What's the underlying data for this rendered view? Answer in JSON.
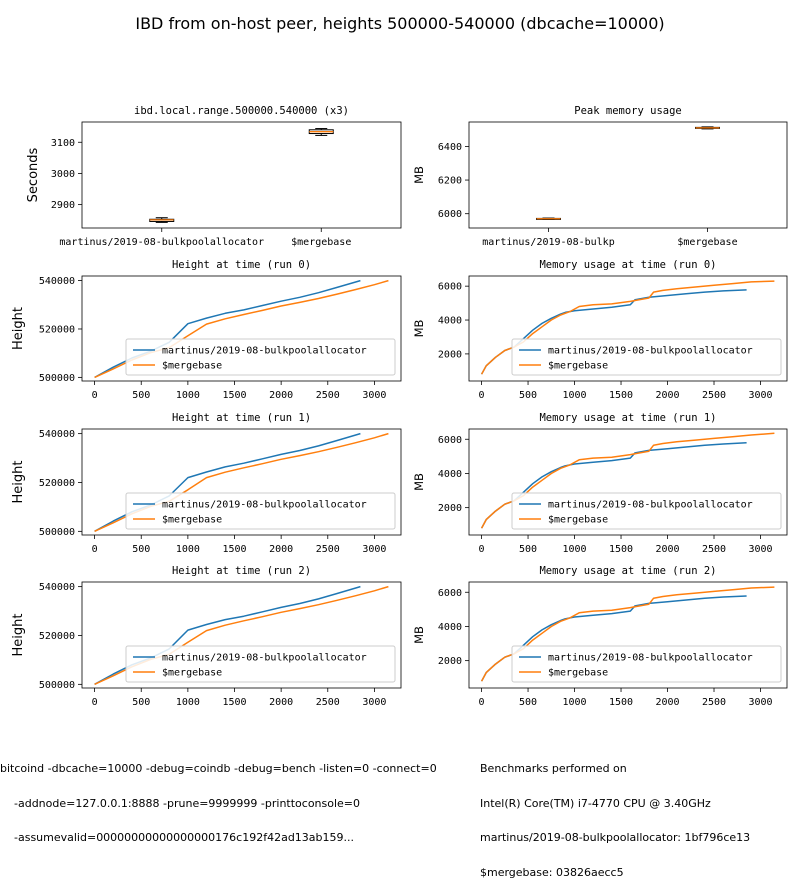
{
  "figure": {
    "title": "IBD from on-host peer, heights 500000-540000 (dbcache=10000)",
    "footer_left": [
      "bitcoind -dbcache=10000 -debug=coindb -debug=bench -listen=0 -connect=0",
      "-addnode=127.0.0.1:8888 -prune=9999999 -printtoconsole=0",
      "-assumevalid=00000000000000000176c192f42ad13ab159..."
    ],
    "footer_right": [
      "Benchmarks performed on",
      "Intel(R) Core(TM) i7-4770 CPU @ 3.40GHz",
      "martinus/2019-08-bulkpoolallocator: 1bf796ce13",
      "$mergebase: 03826aecc5"
    ]
  },
  "colors": {
    "series_a": "#1f77b4",
    "series_b": "#ff7f0e",
    "box_median": "#ff7f0e"
  },
  "chart_data": [
    {
      "type": "box",
      "title": "ibd.local.range.500000.540000 (x3)",
      "ylabel": "Seconds",
      "categories": [
        "martinus/2019-08-bulkpoolallocator",
        "$mergebase"
      ],
      "ylim": [
        2825,
        3165
      ],
      "yticks": [
        2900,
        3000,
        3100
      ],
      "boxes": [
        {
          "min": 2843,
          "q1": 2846,
          "median": 2851,
          "q3": 2853,
          "max": 2858
        },
        {
          "min": 3122,
          "q1": 3128,
          "median": 3134,
          "q3": 3140,
          "max": 3144
        }
      ]
    },
    {
      "type": "box",
      "title": "Peak memory usage",
      "ylabel": "MB",
      "categories": [
        "martinus/2019-08-bulkp",
        "$mergebase"
      ],
      "ylim": [
        5915,
        6545
      ],
      "yticks": [
        6000,
        6200,
        6400
      ],
      "boxes": [
        {
          "min": 5966,
          "q1": 5968,
          "median": 5970,
          "q3": 5972,
          "max": 5974
        },
        {
          "min": 6504,
          "q1": 6507,
          "median": 6510,
          "q3": 6513,
          "max": 6516
        }
      ]
    },
    {
      "type": "line",
      "kind": "height",
      "title": "Height at time (run 0)",
      "ylabel": "Height",
      "xlim": [
        -135,
        3285
      ],
      "ylim": [
        498500,
        541900
      ],
      "xticks": [
        0,
        500,
        1000,
        1500,
        2000,
        2500,
        3000
      ],
      "yticks": [
        500000,
        520000,
        540000
      ],
      "series": [
        {
          "name": "martinus/2019-08-bulkpoolallocator",
          "x": [
            0,
            200,
            400,
            600,
            800,
            1000,
            1200,
            1400,
            1600,
            1800,
            2000,
            2200,
            2400,
            2600,
            2850
          ],
          "y": [
            500000,
            504200,
            508000,
            510800,
            514500,
            522200,
            524500,
            526500,
            527900,
            529700,
            531500,
            533100,
            535000,
            537200,
            540000
          ]
        },
        {
          "name": "$mergebase",
          "x": [
            0,
            200,
            400,
            600,
            800,
            1000,
            1200,
            1400,
            1600,
            1800,
            2000,
            2200,
            2400,
            2600,
            2800,
            3000,
            3150
          ],
          "y": [
            500000,
            503500,
            507200,
            510200,
            512300,
            517200,
            522000,
            524200,
            526000,
            527700,
            529500,
            531000,
            532600,
            534400,
            536300,
            538300,
            540000
          ]
        }
      ]
    },
    {
      "type": "line",
      "kind": "memory",
      "title": "Memory usage at time (run 0)",
      "ylabel": "MB",
      "xlim": [
        -135,
        3285
      ],
      "ylim": [
        400,
        6600
      ],
      "xticks": [
        0,
        500,
        1000,
        1500,
        2000,
        2500,
        3000
      ],
      "yticks": [
        2000,
        4000,
        6000
      ],
      "series": [
        {
          "name": "martinus/2019-08-bulkpoolallocator",
          "x": [
            0,
            50,
            150,
            250,
            350,
            450,
            550,
            650,
            750,
            850,
            900,
            1000,
            1200,
            1400,
            1600,
            1650,
            1800,
            2000,
            2200,
            2400,
            2600,
            2850
          ],
          "y": [
            800,
            1300,
            1800,
            2200,
            2400,
            2900,
            3400,
            3800,
            4100,
            4350,
            4450,
            4550,
            4650,
            4750,
            4900,
            5200,
            5350,
            5450,
            5550,
            5650,
            5720,
            5780
          ]
        },
        {
          "name": "$mergebase",
          "x": [
            0,
            50,
            150,
            250,
            350,
            450,
            550,
            650,
            750,
            850,
            950,
            1050,
            1200,
            1400,
            1600,
            1800,
            1850,
            1950,
            2100,
            2300,
            2500,
            2700,
            2900,
            3150
          ],
          "y": [
            800,
            1300,
            1800,
            2200,
            2400,
            2700,
            3200,
            3600,
            4000,
            4300,
            4500,
            4800,
            4900,
            4950,
            5100,
            5300,
            5650,
            5750,
            5850,
            5950,
            6050,
            6150,
            6250,
            6300
          ]
        }
      ]
    },
    {
      "type": "line",
      "kind": "height",
      "title": "Height at time (run 1)",
      "ylabel": "Height",
      "xlim": [
        -135,
        3285
      ],
      "ylim": [
        498500,
        541900
      ],
      "xticks": [
        0,
        500,
        1000,
        1500,
        2000,
        2500,
        3000
      ],
      "yticks": [
        500000,
        520000,
        540000
      ],
      "series": [
        {
          "name": "martinus/2019-08-bulkpoolallocator",
          "x": [
            0,
            200,
            400,
            600,
            800,
            1000,
            1200,
            1400,
            1600,
            1800,
            2000,
            2200,
            2400,
            2600,
            2850
          ],
          "y": [
            500000,
            504200,
            508000,
            510800,
            514500,
            522000,
            524300,
            526400,
            527900,
            529700,
            531500,
            533100,
            535000,
            537200,
            540000
          ]
        },
        {
          "name": "$mergebase",
          "x": [
            0,
            200,
            400,
            600,
            800,
            1000,
            1200,
            1400,
            1600,
            1800,
            2000,
            2200,
            2400,
            2600,
            2800,
            3000,
            3150
          ],
          "y": [
            500000,
            503500,
            507200,
            510200,
            512300,
            517000,
            522000,
            524200,
            526000,
            527700,
            529500,
            531000,
            532600,
            534400,
            536300,
            538300,
            540000
          ]
        }
      ]
    },
    {
      "type": "line",
      "kind": "memory",
      "title": "Memory usage at time (run 1)",
      "ylabel": "MB",
      "xlim": [
        -135,
        3285
      ],
      "ylim": [
        400,
        6600
      ],
      "xticks": [
        0,
        500,
        1000,
        1500,
        2000,
        2500,
        3000
      ],
      "yticks": [
        2000,
        4000,
        6000
      ],
      "series": [
        {
          "name": "martinus/2019-08-bulkpoolallocator",
          "x": [
            0,
            50,
            150,
            250,
            350,
            450,
            550,
            650,
            750,
            850,
            900,
            1000,
            1200,
            1400,
            1600,
            1650,
            1800,
            2000,
            2200,
            2400,
            2600,
            2850
          ],
          "y": [
            800,
            1300,
            1800,
            2200,
            2400,
            2900,
            3400,
            3800,
            4100,
            4350,
            4450,
            4550,
            4650,
            4750,
            4900,
            5200,
            5350,
            5450,
            5550,
            5650,
            5720,
            5800
          ]
        },
        {
          "name": "$mergebase",
          "x": [
            0,
            50,
            150,
            250,
            350,
            450,
            550,
            650,
            750,
            850,
            950,
            1050,
            1200,
            1400,
            1600,
            1800,
            1850,
            1950,
            2100,
            2300,
            2500,
            2700,
            2900,
            3150
          ],
          "y": [
            800,
            1300,
            1800,
            2200,
            2400,
            2700,
            3200,
            3600,
            4000,
            4300,
            4500,
            4800,
            4900,
            4950,
            5100,
            5300,
            5650,
            5750,
            5850,
            5950,
            6050,
            6150,
            6250,
            6350
          ]
        }
      ]
    },
    {
      "type": "line",
      "kind": "height",
      "title": "Height at time (run 2)",
      "ylabel": "Height",
      "xlim": [
        -135,
        3285
      ],
      "ylim": [
        498500,
        541900
      ],
      "xticks": [
        0,
        500,
        1000,
        1500,
        2000,
        2500,
        3000
      ],
      "yticks": [
        500000,
        520000,
        540000
      ],
      "series": [
        {
          "name": "martinus/2019-08-bulkpoolallocator",
          "x": [
            0,
            200,
            400,
            600,
            800,
            1000,
            1200,
            1400,
            1600,
            1800,
            2000,
            2200,
            2400,
            2600,
            2850
          ],
          "y": [
            500000,
            504200,
            508000,
            510800,
            514500,
            522200,
            524500,
            526500,
            527900,
            529700,
            531500,
            533100,
            535000,
            537200,
            540000
          ]
        },
        {
          "name": "$mergebase",
          "x": [
            0,
            200,
            400,
            600,
            800,
            1000,
            1200,
            1400,
            1600,
            1800,
            2000,
            2200,
            2400,
            2600,
            2800,
            3000,
            3150
          ],
          "y": [
            500000,
            503500,
            507200,
            510200,
            512300,
            517200,
            522000,
            524200,
            526000,
            527700,
            529500,
            531000,
            532600,
            534400,
            536300,
            538300,
            540000
          ]
        }
      ]
    },
    {
      "type": "line",
      "kind": "memory",
      "title": "Memory usage at time (run 2)",
      "ylabel": "MB",
      "xlim": [
        -135,
        3285
      ],
      "ylim": [
        400,
        6600
      ],
      "xticks": [
        0,
        500,
        1000,
        1500,
        2000,
        2500,
        3000
      ],
      "yticks": [
        2000,
        4000,
        6000
      ],
      "series": [
        {
          "name": "martinus/2019-08-bulkpoolallocator",
          "x": [
            0,
            50,
            150,
            250,
            350,
            450,
            550,
            650,
            750,
            850,
            900,
            1000,
            1200,
            1400,
            1600,
            1650,
            1800,
            2000,
            2200,
            2400,
            2600,
            2850
          ],
          "y": [
            800,
            1300,
            1800,
            2200,
            2400,
            2900,
            3400,
            3800,
            4100,
            4350,
            4450,
            4550,
            4650,
            4750,
            4900,
            5200,
            5350,
            5450,
            5550,
            5650,
            5720,
            5780
          ]
        },
        {
          "name": "$mergebase",
          "x": [
            0,
            50,
            150,
            250,
            350,
            450,
            550,
            650,
            750,
            850,
            950,
            1050,
            1200,
            1400,
            1600,
            1800,
            1850,
            1950,
            2100,
            2300,
            2500,
            2700,
            2900,
            3150
          ],
          "y": [
            800,
            1300,
            1800,
            2200,
            2400,
            2700,
            3200,
            3600,
            4000,
            4300,
            4500,
            4800,
            4900,
            4950,
            5100,
            5300,
            5650,
            5750,
            5850,
            5950,
            6050,
            6150,
            6250,
            6300
          ]
        }
      ]
    }
  ]
}
